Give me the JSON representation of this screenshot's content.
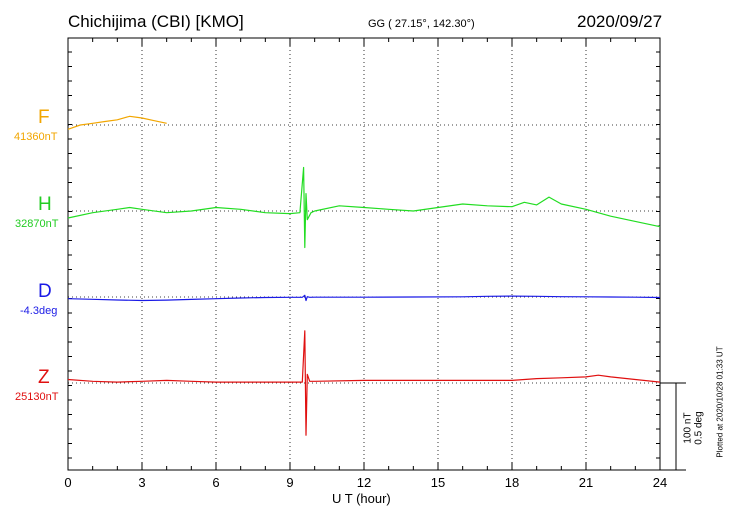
{
  "header": {
    "station": "Chichijima (CBI)  [KMO]",
    "coords": "GG ( 27.15°, 142.30°)",
    "date": "2020/09/27"
  },
  "footer": {
    "xlabel": "U T (hour)",
    "plotted": "Plotted at 2020/10/28 01:33 UT"
  },
  "scale_bar": {
    "nt_label": "100 nT",
    "deg_label": "0.5 deg"
  },
  "components": [
    {
      "key": "F",
      "letter": "F",
      "baseline": "41360nT",
      "color": "#f2a600"
    },
    {
      "key": "H",
      "letter": "H",
      "baseline": "32870nT",
      "color": "#22dd22"
    },
    {
      "key": "D",
      "letter": "D",
      "baseline": "-4.3deg",
      "color": "#1a1ae6"
    },
    {
      "key": "Z",
      "letter": "Z",
      "baseline": "25130nT",
      "color": "#e01010"
    }
  ],
  "chart_data": {
    "type": "line",
    "title": "Chichijima (CBI)  [KMO]",
    "xlabel": "U T (hour)",
    "ylabel": "",
    "xlim": [
      0,
      24
    ],
    "x_ticks": [
      0,
      3,
      6,
      9,
      12,
      15,
      18,
      21,
      24
    ],
    "y_unit_nT_per_bar": 100,
    "y_unit_deg_per_bar": 0.5,
    "grid": true,
    "series": [
      {
        "name": "F",
        "unit": "nT",
        "baseline": 41360,
        "color": "#f2a600",
        "x": [
          0,
          0.5,
          1,
          1.5,
          2,
          2.5,
          3,
          3.5,
          4
        ],
        "y": [
          41355,
          41360,
          41362,
          41364,
          41366,
          41370,
          41368,
          41365,
          41362
        ]
      },
      {
        "name": "H",
        "unit": "nT",
        "baseline": 32870,
        "color": "#22dd22",
        "x": [
          0,
          1,
          2,
          2.5,
          3,
          4,
          5,
          6,
          7,
          8,
          9,
          9.4,
          9.55,
          9.6,
          9.65,
          9.7,
          9.85,
          10,
          11,
          12,
          13,
          14,
          15,
          16,
          17,
          18,
          18.5,
          19,
          19.5,
          20,
          21,
          22,
          23,
          24
        ],
        "y": [
          32862,
          32868,
          32872,
          32874,
          32872,
          32868,
          32870,
          32874,
          32872,
          32868,
          32867,
          32868,
          32920,
          32828,
          32890,
          32860,
          32868,
          32870,
          32876,
          32874,
          32872,
          32870,
          32874,
          32878,
          32876,
          32875,
          32880,
          32877,
          32886,
          32878,
          32872,
          32864,
          32858,
          32852
        ]
      },
      {
        "name": "D",
        "unit": "deg",
        "baseline": -4.3,
        "color": "#1a1ae6",
        "x": [
          0,
          1,
          2,
          3,
          4,
          5,
          6,
          7,
          8,
          9,
          9.5,
          9.6,
          9.65,
          9.7,
          9.8,
          10,
          12,
          14,
          16,
          17,
          18,
          19,
          20,
          21,
          22,
          23,
          24
        ],
        "y": [
          -4.31,
          -4.313,
          -4.317,
          -4.32,
          -4.318,
          -4.314,
          -4.31,
          -4.306,
          -4.303,
          -4.302,
          -4.302,
          -4.29,
          -4.32,
          -4.298,
          -4.302,
          -4.301,
          -4.301,
          -4.3,
          -4.299,
          -4.296,
          -4.295,
          -4.296,
          -4.298,
          -4.299,
          -4.3,
          -4.301,
          -4.303
        ]
      },
      {
        "name": "Z",
        "unit": "nT",
        "baseline": 25130,
        "color": "#e01010",
        "x": [
          0,
          1,
          2,
          3,
          4,
          5,
          6,
          7,
          8,
          9,
          9.5,
          9.6,
          9.65,
          9.7,
          9.8,
          10,
          12,
          14,
          16,
          18,
          19,
          20,
          21,
          21.5,
          22,
          23,
          24
        ],
        "y": [
          25134,
          25132,
          25131,
          25132,
          25133,
          25132,
          25131,
          25131,
          25131,
          25131,
          25131,
          25190,
          25070,
          25140,
          25132,
          25132,
          25133,
          25133,
          25133,
          25133,
          25135,
          25136,
          25137,
          25139,
          25137,
          25134,
          25131
        ]
      }
    ]
  }
}
